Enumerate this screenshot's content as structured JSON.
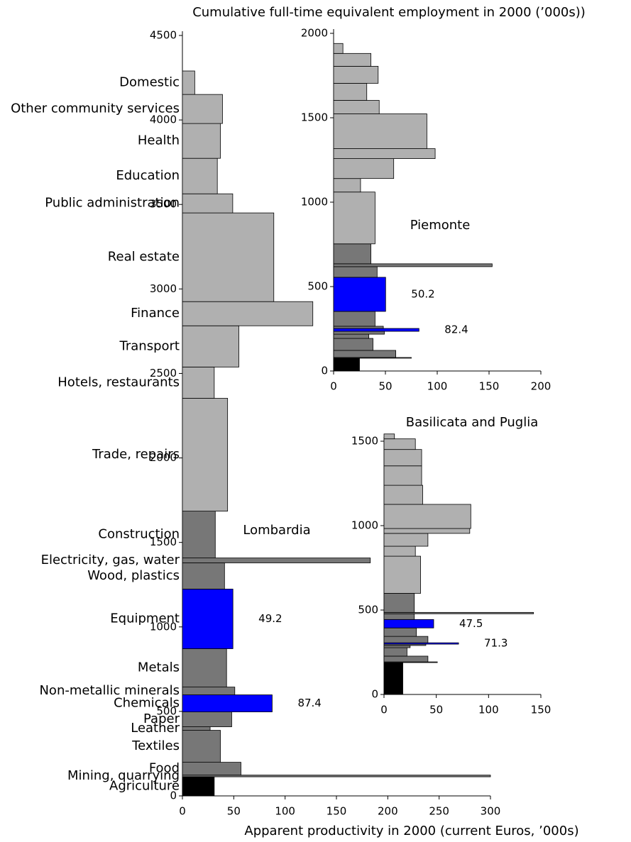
{
  "chart_data": [
    {
      "type": "variwidth",
      "name": "Lombardia",
      "ylabel": "Cumulative full-time equivalent employment in 2000 (’000s))",
      "xlabel": "Apparent productivity in 2000 (current Euros, ’000s)",
      "categories": [
        "Agriculture",
        "Mining, quarrying",
        "Food",
        "Textiles",
        "Leather",
        "Paper",
        "Chemicals",
        "Non-metallic minerals",
        "Metals",
        "Equipment",
        "Wood, plastics",
        "Electricity, gas, water",
        "Construction",
        "Trade, repairs",
        "Hotels, restaurants",
        "Transport",
        "Finance",
        "Real estate",
        "Public administration",
        "Education",
        "Health",
        "Other community services",
        "Domestic"
      ],
      "values": [
        31,
        300,
        57,
        37,
        27,
        48,
        87.4,
        51,
        43,
        49.2,
        41,
        183,
        32,
        44,
        31,
        55,
        127,
        89,
        49,
        34,
        37,
        39,
        12
      ],
      "widths": [
        113,
        10,
        76,
        189,
        21,
        88,
        101,
        46,
        227,
        353,
        155,
        29,
        277,
        668,
        185,
        244,
        143,
        525,
        113,
        210,
        206,
        172,
        139
      ],
      "value_labels": [
        null,
        null,
        null,
        null,
        null,
        null,
        "87.4",
        null,
        null,
        "49.2",
        null,
        null,
        null,
        null,
        null,
        null,
        null,
        null,
        null,
        null,
        null,
        null,
        null
      ],
      "colors": [
        "#000000",
        "#777777",
        "#777777",
        "#777777",
        "#777777",
        "#777777",
        "#0000ff",
        "#777777",
        "#777777",
        "#0000ff",
        "#777777",
        "#777777",
        "#777777",
        "#b0b0b0",
        "#b0b0b0",
        "#b0b0b0",
        "#b0b0b0",
        "#b0b0b0",
        "#b0b0b0",
        "#b0b0b0",
        "#b0b0b0",
        "#b0b0b0",
        "#b0b0b0"
      ],
      "xlim": [
        0,
        300
      ],
      "xticks": [
        0,
        50,
        100,
        150,
        200,
        250,
        300
      ],
      "ylim": [
        0,
        4500
      ],
      "yticks": [
        0,
        500,
        1000,
        1500,
        2000,
        2500,
        3000,
        3500,
        4000,
        4500
      ]
    },
    {
      "type": "variwidth",
      "name": "Piemonte",
      "values": [
        25,
        75,
        60,
        38,
        34,
        49,
        82.4,
        48,
        40,
        50.2,
        42,
        153,
        36,
        40,
        26,
        58,
        98,
        90,
        44,
        32,
        43,
        36,
        9
      ],
      "widths": [
        76,
        4,
        42,
        71,
        25,
        17,
        17,
        13,
        88,
        202,
        63,
        17,
        118,
        307,
        80,
        118,
        59,
        206,
        80,
        101,
        101,
        76,
        59
      ],
      "value_labels": [
        null,
        null,
        null,
        null,
        null,
        null,
        "82.4",
        null,
        null,
        "50.2",
        null,
        null,
        null,
        null,
        null,
        null,
        null,
        null,
        null,
        null,
        null,
        null,
        null
      ],
      "colors": [
        "#000000",
        "#777777",
        "#777777",
        "#777777",
        "#777777",
        "#777777",
        "#0000ff",
        "#777777",
        "#777777",
        "#0000ff",
        "#777777",
        "#777777",
        "#777777",
        "#b0b0b0",
        "#b0b0b0",
        "#b0b0b0",
        "#b0b0b0",
        "#b0b0b0",
        "#b0b0b0",
        "#b0b0b0",
        "#b0b0b0",
        "#b0b0b0",
        "#b0b0b0"
      ],
      "xlim": [
        0,
        200
      ],
      "xticks": [
        0,
        50,
        100,
        150,
        200
      ],
      "ylim": [
        0,
        2000
      ],
      "yticks": [
        0,
        500,
        1000,
        1500,
        2000
      ]
    },
    {
      "type": "variwidth",
      "name": "Basilicata and Puglia",
      "values": [
        18,
        51,
        42,
        22,
        25,
        40,
        71.3,
        42,
        31,
        47.5,
        29,
        143,
        29,
        35,
        30,
        42,
        82,
        83,
        37,
        36,
        36,
        30,
        10
      ],
      "widths": [
        189,
        4,
        34,
        50,
        13,
        8,
        8,
        38,
        50,
        50,
        34,
        8,
        113,
        220,
        59,
        76,
        29,
        143,
        113,
        115,
        97,
        63,
        29
      ],
      "value_labels": [
        null,
        null,
        null,
        null,
        null,
        null,
        "71.3",
        null,
        null,
        "47.5",
        null,
        null,
        null,
        null,
        null,
        null,
        null,
        null,
        null,
        null,
        null,
        null,
        null
      ],
      "colors": [
        "#000000",
        "#777777",
        "#777777",
        "#777777",
        "#777777",
        "#777777",
        "#0000ff",
        "#777777",
        "#777777",
        "#0000ff",
        "#777777",
        "#777777",
        "#777777",
        "#b0b0b0",
        "#b0b0b0",
        "#b0b0b0",
        "#b0b0b0",
        "#b0b0b0",
        "#b0b0b0",
        "#b0b0b0",
        "#b0b0b0",
        "#b0b0b0",
        "#b0b0b0"
      ],
      "xlim": [
        0,
        150
      ],
      "xticks": [
        0,
        50,
        100,
        150
      ],
      "ylim": [
        0,
        1500
      ],
      "yticks": [
        0,
        500,
        1000,
        1500
      ]
    }
  ]
}
